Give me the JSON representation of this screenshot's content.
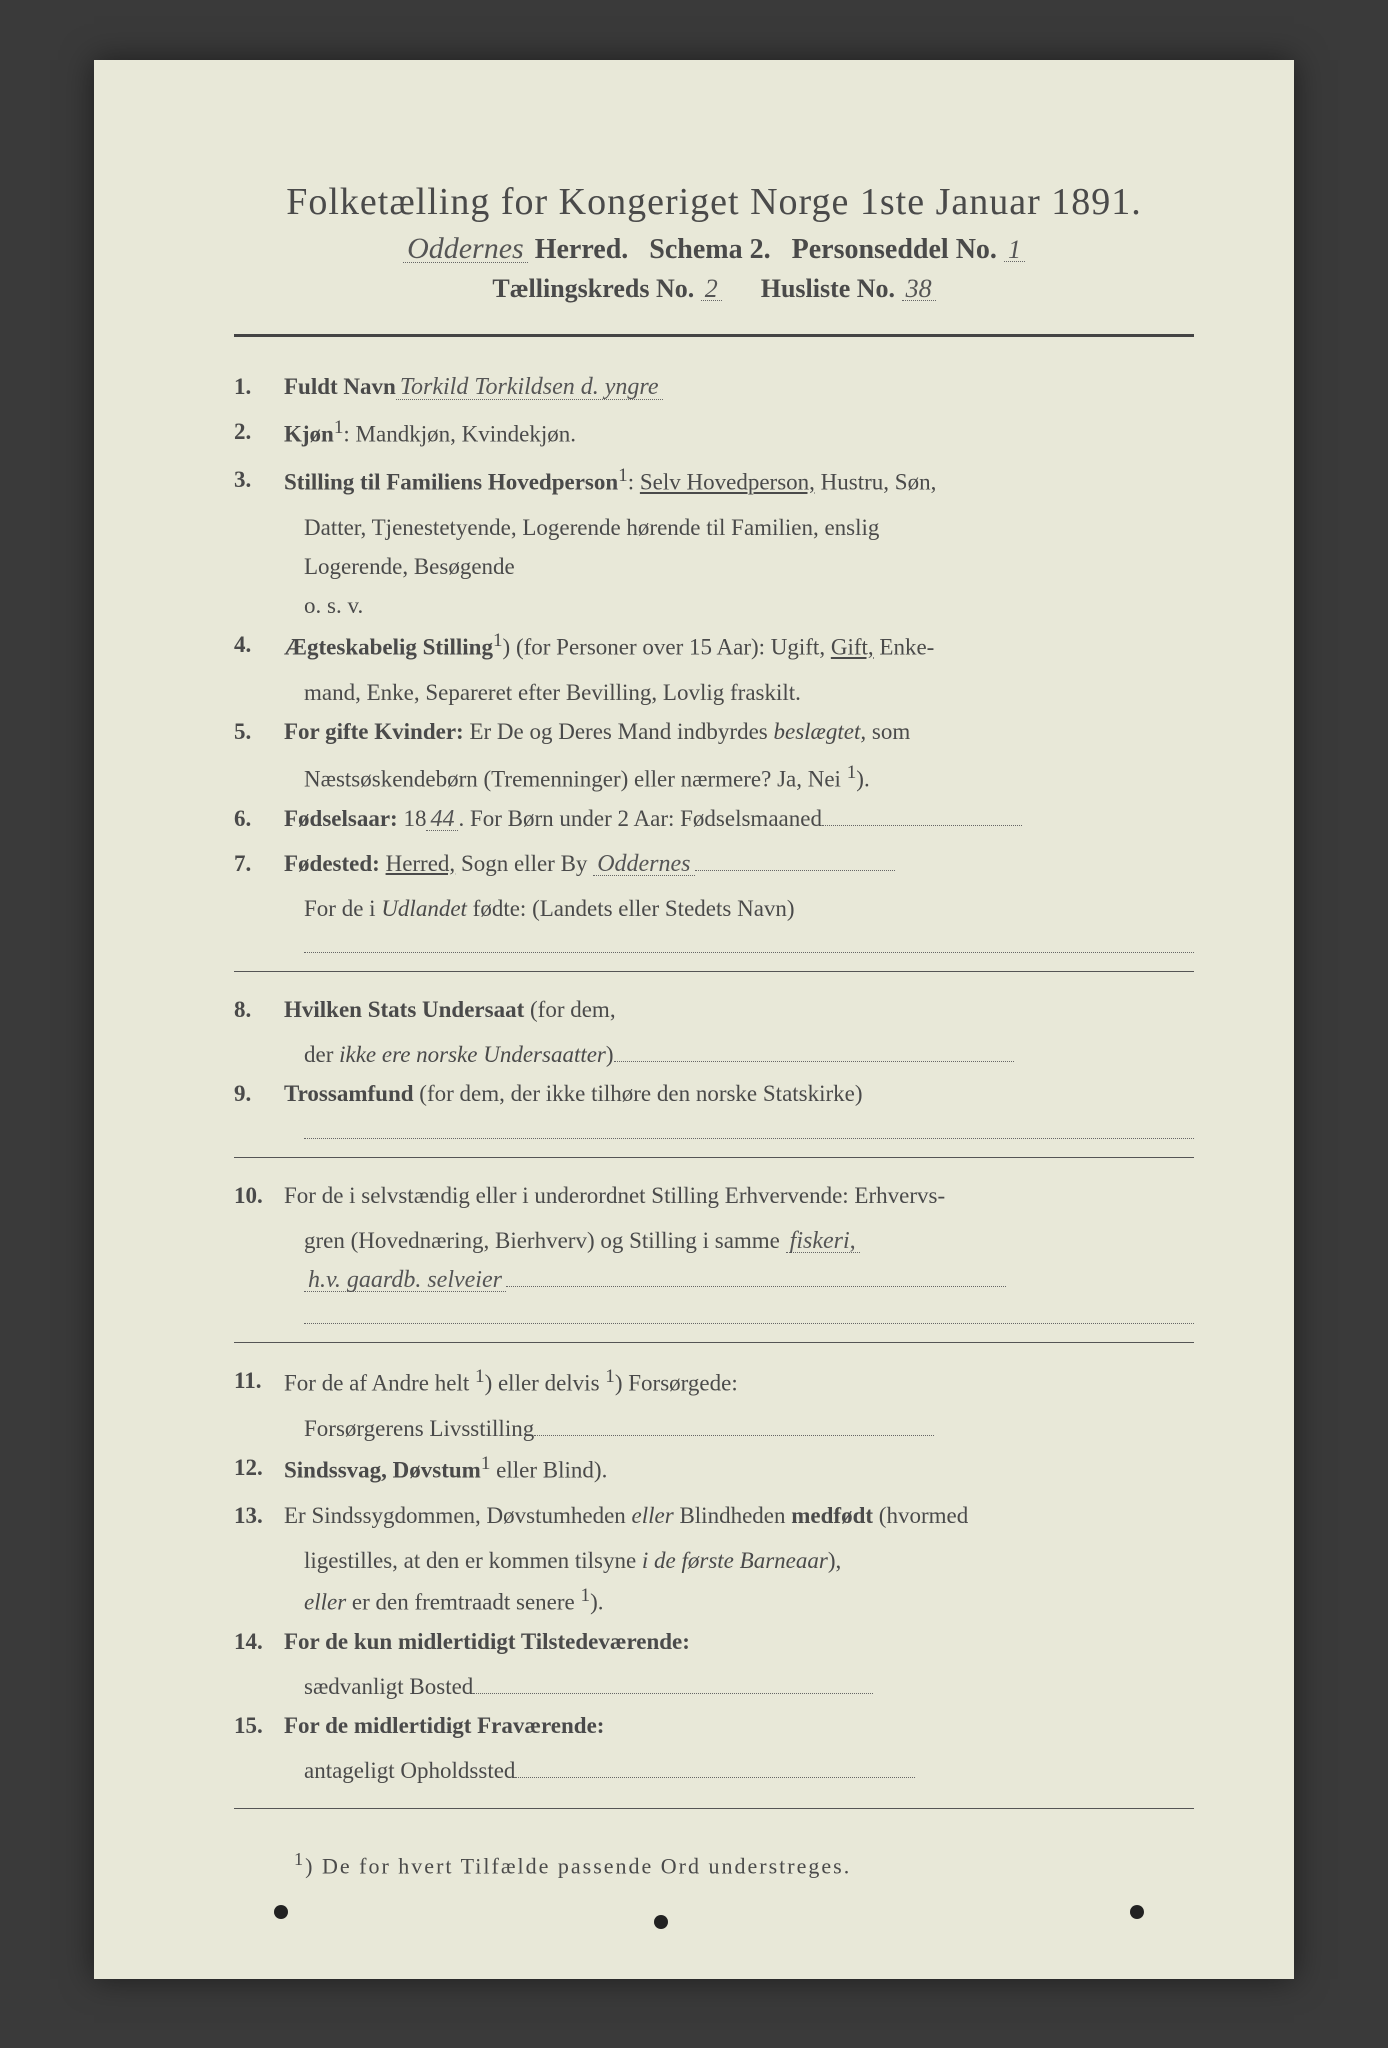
{
  "colors": {
    "page_bg": "#e8e8d8",
    "frame_bg": "#3a3a3a",
    "text": "#4a4a4a",
    "handwriting": "#555555",
    "dotted": "#666666",
    "rule": "#444444"
  },
  "typography": {
    "body_family": "Georgia, Times New Roman, serif",
    "handwriting_family": "Brush Script MT, cursive",
    "title_pt": 38,
    "subhead_pt": 28,
    "item_pt": 23,
    "footnote_pt": 22
  },
  "header": {
    "title": "Folketælling for Kongeriget Norge 1ste Januar 1891.",
    "herred_hand": "Oddernes",
    "herred_label": "Herred.",
    "schema_label": "Schema 2.",
    "person_label": "Personseddel No.",
    "person_no": "1",
    "kreds_label": "Tællingskreds No.",
    "kreds_no": "2",
    "husliste_label": "Husliste No.",
    "husliste_no": "38"
  },
  "items": [
    {
      "n": "1.",
      "label": "Fuldt Navn",
      "hand": "Torkild Torkildsen d. yngre"
    },
    {
      "n": "2.",
      "label": "Kjøn",
      "sup": "1",
      "text": ": Mandkjøn, Kvindekjøn."
    },
    {
      "n": "3.",
      "label": "Stilling til Familiens Hovedperson",
      "sup": "1",
      "text": ": Selv Hovedperson, Hustru, Søn,",
      "cont": [
        "Datter, Tjenestetyende, Logerende hørende til Familien, enslig",
        "Logerende, Besøgende",
        "o. s. v."
      ],
      "underline_words": [
        "Selv Hovedperson,"
      ]
    },
    {
      "n": "4.",
      "label": "Ægteskabelig Stilling",
      "sup": "1",
      "text": ") (for Personer over 15 Aar): Ugift, Gift, Enke-",
      "cont": [
        "mand, Enke, Separeret efter Bevilling, Lovlig fraskilt."
      ],
      "underline_words": [
        "Gift,"
      ]
    },
    {
      "n": "5.",
      "label": "For gifte Kvinder:",
      "text": " Er De og Deres Mand indbyrdes beslægtet, som",
      "cont": [
        "Næstsøskendebørn (Tremenninger) eller nærmere?  Ja, Nei "
      ],
      "cont_sup": "1",
      "italic_words": [
        "beslægtet,"
      ]
    },
    {
      "n": "6.",
      "label": "Fødselsaar:",
      "text": " 18",
      "hand": "44",
      "tail": ".   For Børn under 2 Aar: Fødselsmaaned",
      "dotted_tail": true
    },
    {
      "n": "7.",
      "label": "Fødested:",
      "text": " Herred, Sogn eller By ",
      "underline_words": [
        "Herred,"
      ],
      "hand": "Oddernes",
      "dotted_tail": true,
      "cont": [
        "For de i Udlandet fødte: (Landets eller Stedets Navn)"
      ],
      "italic_words": [
        "Udlandet"
      ],
      "dotted_line_after": true
    },
    {
      "n": "8.",
      "label": "Hvilken Stats Undersaat",
      "text": " (for dem,",
      "cont": [
        "der ikke ere norske Undersaatter)"
      ],
      "italic_words": [
        "ikke ere norske Undersaatter"
      ],
      "dotted_tail_cont": true
    },
    {
      "n": "9.",
      "label": "Trossamfund",
      "text": " (for dem, der ikke tilhøre den norske Statskirke)",
      "dotted_line_after": true
    },
    {
      "n": "10.",
      "label": "",
      "text": "For de i selvstændig eller i underordnet Stilling Erhvervende: Erhvervs-",
      "cont": [
        "gren (Hovednæring, Bierhverv) og Stilling i samme"
      ],
      "cont_hand": "fiskeri,",
      "cont2_hand": "h.v. gaardb. selveier",
      "dotted_line_after": true
    },
    {
      "n": "11.",
      "label": "",
      "text": "For de af Andre helt ",
      "sup_mid": "1",
      "text2": ") eller delvis ",
      "sup_mid2": "1",
      "text3": ") Forsørgede:",
      "cont": [
        "Forsørgerens Livsstilling"
      ],
      "dotted_tail_cont": true
    },
    {
      "n": "12.",
      "label": "Sindssvag, Døvstum",
      "text": " eller Blind",
      "sup": "1",
      "text2": ")."
    },
    {
      "n": "13.",
      "label": "",
      "text": "Er Sindssygdommen, Døvstumheden eller Blindheden medfødt (hvormed",
      "cont": [
        "ligestilles, at den er kommen tilsyne i de første Barneaar),",
        "eller er den fremtraadt senere "
      ],
      "cont_sup": "1",
      "italic_words": [
        "i de første Barneaar",
        "eller"
      ],
      "bold_words": [
        "medfødt"
      ]
    },
    {
      "n": "14.",
      "label": "For de kun midlertidigt Tilstedeværende:",
      "text": "",
      "cont": [
        "sædvanligt Bosted"
      ],
      "dotted_tail_cont": true
    },
    {
      "n": "15.",
      "label": "For de midlertidigt Fraværende:",
      "text": "",
      "cont": [
        "antageligt Opholdssted"
      ],
      "dotted_tail_cont": true
    }
  ],
  "footnote": {
    "sup": "1",
    "text": ") De for hvert Tilfælde passende Ord understreges."
  }
}
